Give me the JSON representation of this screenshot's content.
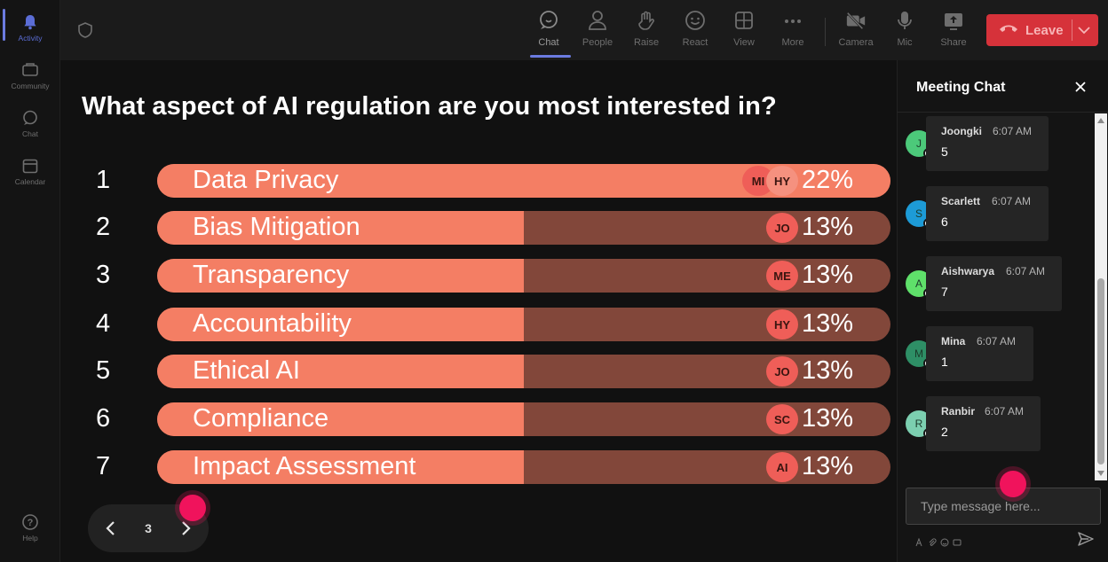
{
  "rail": {
    "items": [
      {
        "label": "Activity",
        "icon": "bell-icon",
        "active": true
      },
      {
        "label": "Community",
        "icon": "community-icon"
      },
      {
        "label": "Chat",
        "icon": "chat-icon"
      },
      {
        "label": "Calendar",
        "icon": "calendar-icon"
      }
    ],
    "help": {
      "label": "Help",
      "icon": "help-icon"
    }
  },
  "toolbar": {
    "shield_icon": "shield-icon",
    "tools": [
      {
        "label": "Chat",
        "icon": "chat-icon",
        "active": true
      },
      {
        "label": "People",
        "icon": "people-icon"
      },
      {
        "label": "Raise",
        "icon": "raise-hand-icon"
      },
      {
        "label": "React",
        "icon": "react-icon"
      },
      {
        "label": "View",
        "icon": "view-grid-icon"
      },
      {
        "label": "More",
        "icon": "more-icon"
      },
      {
        "label": "Camera",
        "icon": "camera-off-icon"
      },
      {
        "label": "Mic",
        "icon": "mic-icon"
      },
      {
        "label": "Share",
        "icon": "share-icon"
      }
    ],
    "leave_label": "Leave",
    "leave_color": "#d6323a"
  },
  "poll": {
    "question": "What aspect of AI regulation are you most interested in?",
    "bar_color": "#f47e64",
    "track_color": "#82473a",
    "options": [
      {
        "num": "1",
        "label": "Data Privacy",
        "pct": "22%",
        "fill": 1.0,
        "avatars": [
          "MI",
          "HY"
        ]
      },
      {
        "num": "2",
        "label": "Bias Mitigation",
        "pct": "13%",
        "fill": 0.5,
        "avatars": [
          "JO"
        ]
      },
      {
        "num": "3",
        "label": "Transparency",
        "pct": "13%",
        "fill": 0.5,
        "avatars": [
          "ME"
        ]
      },
      {
        "num": "4",
        "label": "Accountability",
        "pct": "13%",
        "fill": 0.5,
        "avatars": [
          "HY"
        ]
      },
      {
        "num": "5",
        "label": "Ethical AI",
        "pct": "13%",
        "fill": 0.5,
        "avatars": [
          "JO"
        ]
      },
      {
        "num": "6",
        "label": "Compliance",
        "pct": "13%",
        "fill": 0.5,
        "avatars": [
          "SC"
        ]
      },
      {
        "num": "7",
        "label": "Impact Assessment",
        "pct": "13%",
        "fill": 0.5,
        "avatars": [
          "AI"
        ]
      }
    ]
  },
  "pager": {
    "page": "3"
  },
  "chat": {
    "title": "Meeting Chat",
    "messages": [
      {
        "name": "Joongki",
        "time": "6:07 AM",
        "text": "5",
        "initial": "J",
        "color": "#4cc97a"
      },
      {
        "name": "Scarlett",
        "time": "6:07 AM",
        "text": "6",
        "initial": "S",
        "color": "#1d9bd7"
      },
      {
        "name": "Aishwarya",
        "time": "6:07 AM",
        "text": "7",
        "initial": "A",
        "color": "#5fe06a"
      },
      {
        "name": "Mina",
        "time": "6:07 AM",
        "text": "1",
        "initial": "M",
        "color": "#2e8f66"
      },
      {
        "name": "Ranbir",
        "time": "6:07 AM",
        "text": "2",
        "initial": "R",
        "color": "#7ccfb0"
      }
    ],
    "input_placeholder": "Type message here..."
  }
}
